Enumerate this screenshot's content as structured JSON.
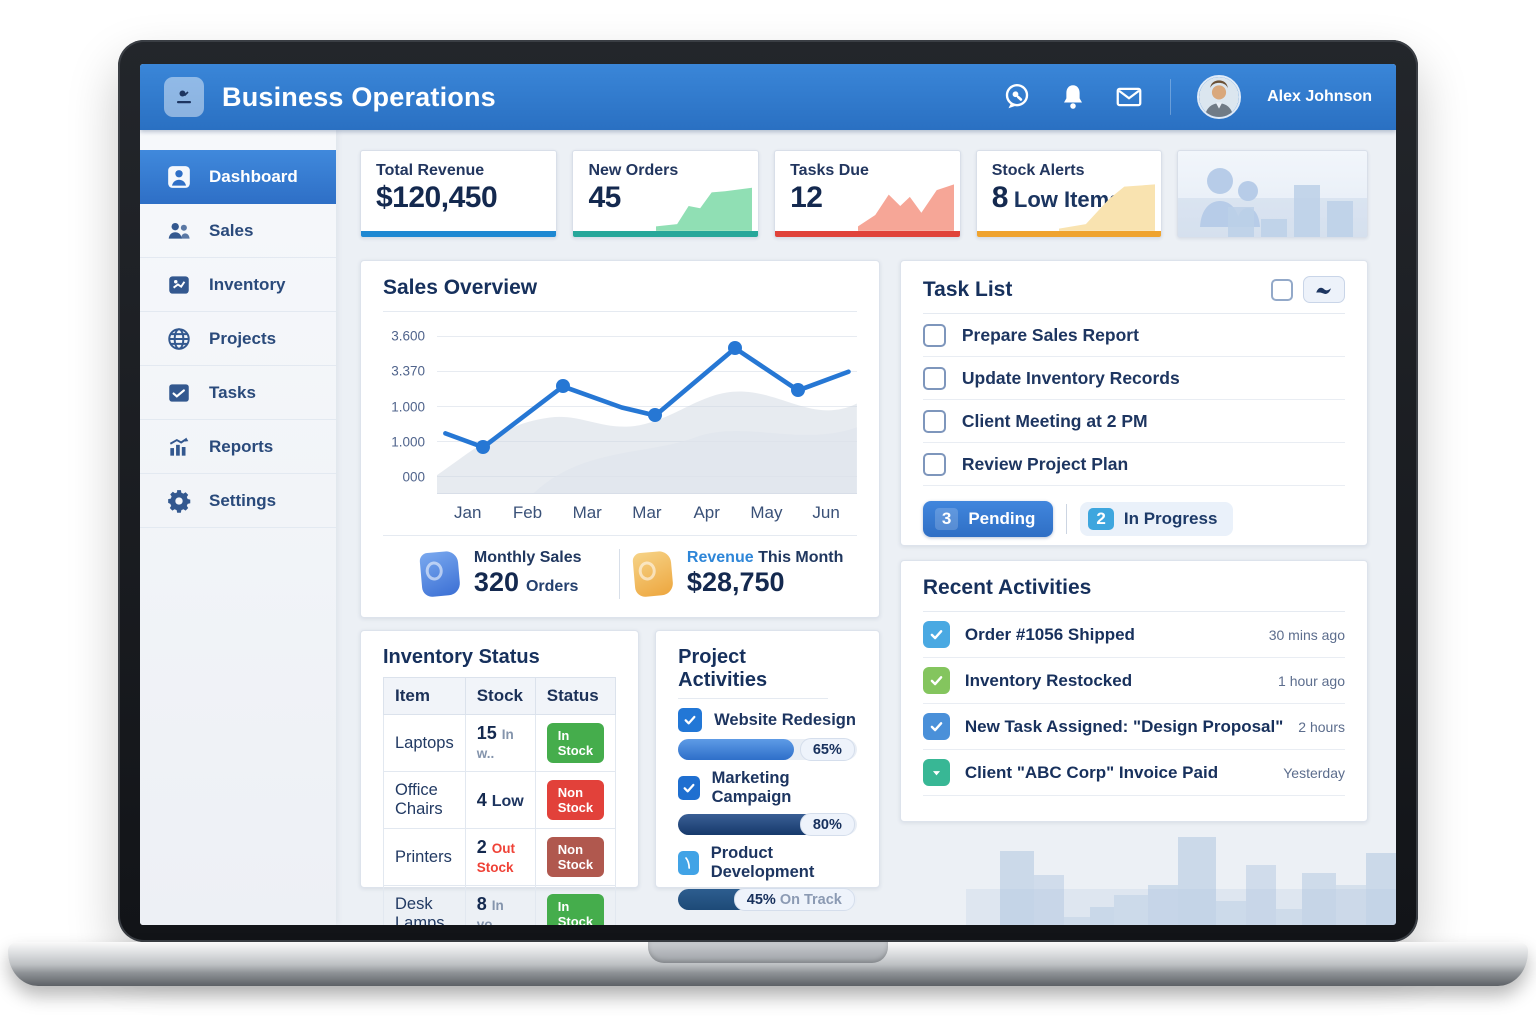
{
  "header": {
    "title": "Business Operations",
    "user_name": "Alex Johnson",
    "icons": [
      "chat",
      "notifications",
      "mail"
    ]
  },
  "sidebar": {
    "items": [
      {
        "label": "Dashboard",
        "icon": "dashboard",
        "active": true
      },
      {
        "label": "Sales",
        "icon": "sales",
        "active": false
      },
      {
        "label": "Inventory",
        "icon": "inventory",
        "active": false
      },
      {
        "label": "Projects",
        "icon": "projects",
        "active": false
      },
      {
        "label": "Tasks",
        "icon": "tasks",
        "active": false
      },
      {
        "label": "Reports",
        "icon": "reports",
        "active": false
      },
      {
        "label": "Settings",
        "icon": "settings",
        "active": false
      }
    ]
  },
  "stats": [
    {
      "label": "Total Revenue",
      "value": "$120,450",
      "suffix": "",
      "accent": "#1e88d2",
      "spark": "none",
      "spark_fill": ""
    },
    {
      "label": "New Orders",
      "value": "45",
      "suffix": "",
      "accent": "#27a79a",
      "spark": "steps",
      "spark_fill": "#90dfb4"
    },
    {
      "label": "Tasks Due",
      "value": "12",
      "suffix": "",
      "accent": "#e0433a",
      "spark": "jagged",
      "spark_fill": "#f6a697"
    },
    {
      "label": "Stock Alerts",
      "value": "8",
      "suffix": "Low Items",
      "accent": "#efa32f",
      "spark": "ramp",
      "spark_fill": "#f9e3b0"
    }
  ],
  "sales_overview": {
    "title": "Sales Overview",
    "chart_data": {
      "type": "bar+line",
      "categories": [
        "Jan",
        "Feb",
        "Mar",
        "Mar",
        "Apr",
        "May",
        "Jun"
      ],
      "y_tick_labels": [
        "3.600",
        "3.370",
        "1.000",
        "1.000",
        "000"
      ],
      "ylim": [
        0,
        4200
      ],
      "grid": true,
      "legend": "none",
      "series": [
        {
          "name": "current",
          "color": "#2a74d2",
          "values": [
            640,
            590,
            1330,
            1490,
            1190,
            2630,
            3900
          ]
        },
        {
          "name": "previous",
          "color": "#a9c8ea",
          "values": [
            810,
            750,
            1010,
            1070,
            570,
            1790,
            2160
          ]
        }
      ],
      "line_series": {
        "name": "trend",
        "color": "#2677d4",
        "points": [
          {
            "x": 0.02,
            "value": 1500,
            "marker": false
          },
          {
            "x": 0.11,
            "value": 1150,
            "marker": true
          },
          {
            "x": 0.3,
            "value": 2680,
            "marker": true
          },
          {
            "x": 0.44,
            "value": 2150,
            "marker": false
          },
          {
            "x": 0.52,
            "value": 1950,
            "marker": true
          },
          {
            "x": 0.71,
            "value": 3640,
            "marker": true
          },
          {
            "x": 0.86,
            "value": 2580,
            "marker": true
          },
          {
            "x": 0.98,
            "value": 3050,
            "marker": false
          }
        ]
      }
    },
    "footer": {
      "monthly_sales": {
        "label": "Monthly Sales",
        "value": "320",
        "suffix": "Orders"
      },
      "revenue_month": {
        "label_accent": "Revenue",
        "label_rest": "This Month",
        "value": "$28,750"
      }
    }
  },
  "task_list": {
    "title": "Task List",
    "items": [
      {
        "label": "Prepare Sales Report",
        "bold": ""
      },
      {
        "label": "Update Inventory Records",
        "bold": ""
      },
      {
        "label": "Client Meeting at",
        "bold": "2 PM"
      },
      {
        "label": "Review Project Plan",
        "bold": ""
      }
    ],
    "badges": [
      {
        "count": "3",
        "label": "Pending",
        "style": "solid"
      },
      {
        "count": "2",
        "label": "In Progress",
        "style": "light"
      }
    ]
  },
  "inventory": {
    "title": "Inventory Status",
    "columns": [
      "Item",
      "Stock",
      "Status"
    ],
    "rows": [
      {
        "item": "Laptops",
        "stock": "15",
        "note": "In w..",
        "note_color": "#8494ac",
        "status": "In Stock",
        "status_color": "#45ad4c"
      },
      {
        "item": "Office Chairs",
        "stock": "4",
        "note": "Low",
        "note_color": "#1d3560",
        "status": "Non Stock",
        "status_color": "#e2413a"
      },
      {
        "item": "Printers",
        "stock": "2",
        "note": "Out Stock",
        "note_color": "#ef4136",
        "status": "Non Stock",
        "status_color": "#b0584e"
      },
      {
        "item": "Desk Lamps",
        "stock": "8",
        "note": "In vo..",
        "note_color": "#8494ac",
        "status": "In Stock",
        "status_color": "#45ad4c"
      }
    ]
  },
  "projects": {
    "title": "Project Activities",
    "items": [
      {
        "name": "Website Redesign",
        "percent": 65,
        "percent_label": "65%",
        "note": "",
        "icon": "check",
        "icon_color": "#2277d6",
        "fill_from": "#5e9be6",
        "fill_to": "#2e6fc9"
      },
      {
        "name": "Marketing Campaign",
        "percent": 80,
        "percent_label": "80%",
        "note": "",
        "icon": "check",
        "icon_color": "#1f6fd0",
        "fill_from": "#3a5f95",
        "fill_to": "#16396b"
      },
      {
        "name": "Product Development",
        "percent": 45,
        "percent_label": "45%",
        "note": "On Track",
        "icon": "arc",
        "icon_color": "#41a3e6",
        "fill_from": "#2d5d8f",
        "fill_to": "#1d4a77"
      }
    ]
  },
  "recent": {
    "title": "Recent Activities",
    "items": [
      {
        "text": "Order #1056 Shipped",
        "time": "30 mins ago",
        "icon": "check",
        "icon_color": "#4aa9e2"
      },
      {
        "text": "Inventory Restocked",
        "time": "1 hour ago",
        "icon": "check",
        "icon_color": "#84c55e"
      },
      {
        "text": "New Task Assigned: \"Design Proposal\"",
        "time": "2 hours",
        "icon": "check",
        "icon_color": "#4a90d9"
      },
      {
        "text": "Client \"ABC Corp\" Invoice Paid",
        "time": "Yesterday",
        "icon": "caret",
        "icon_color": "#38b795"
      }
    ]
  }
}
